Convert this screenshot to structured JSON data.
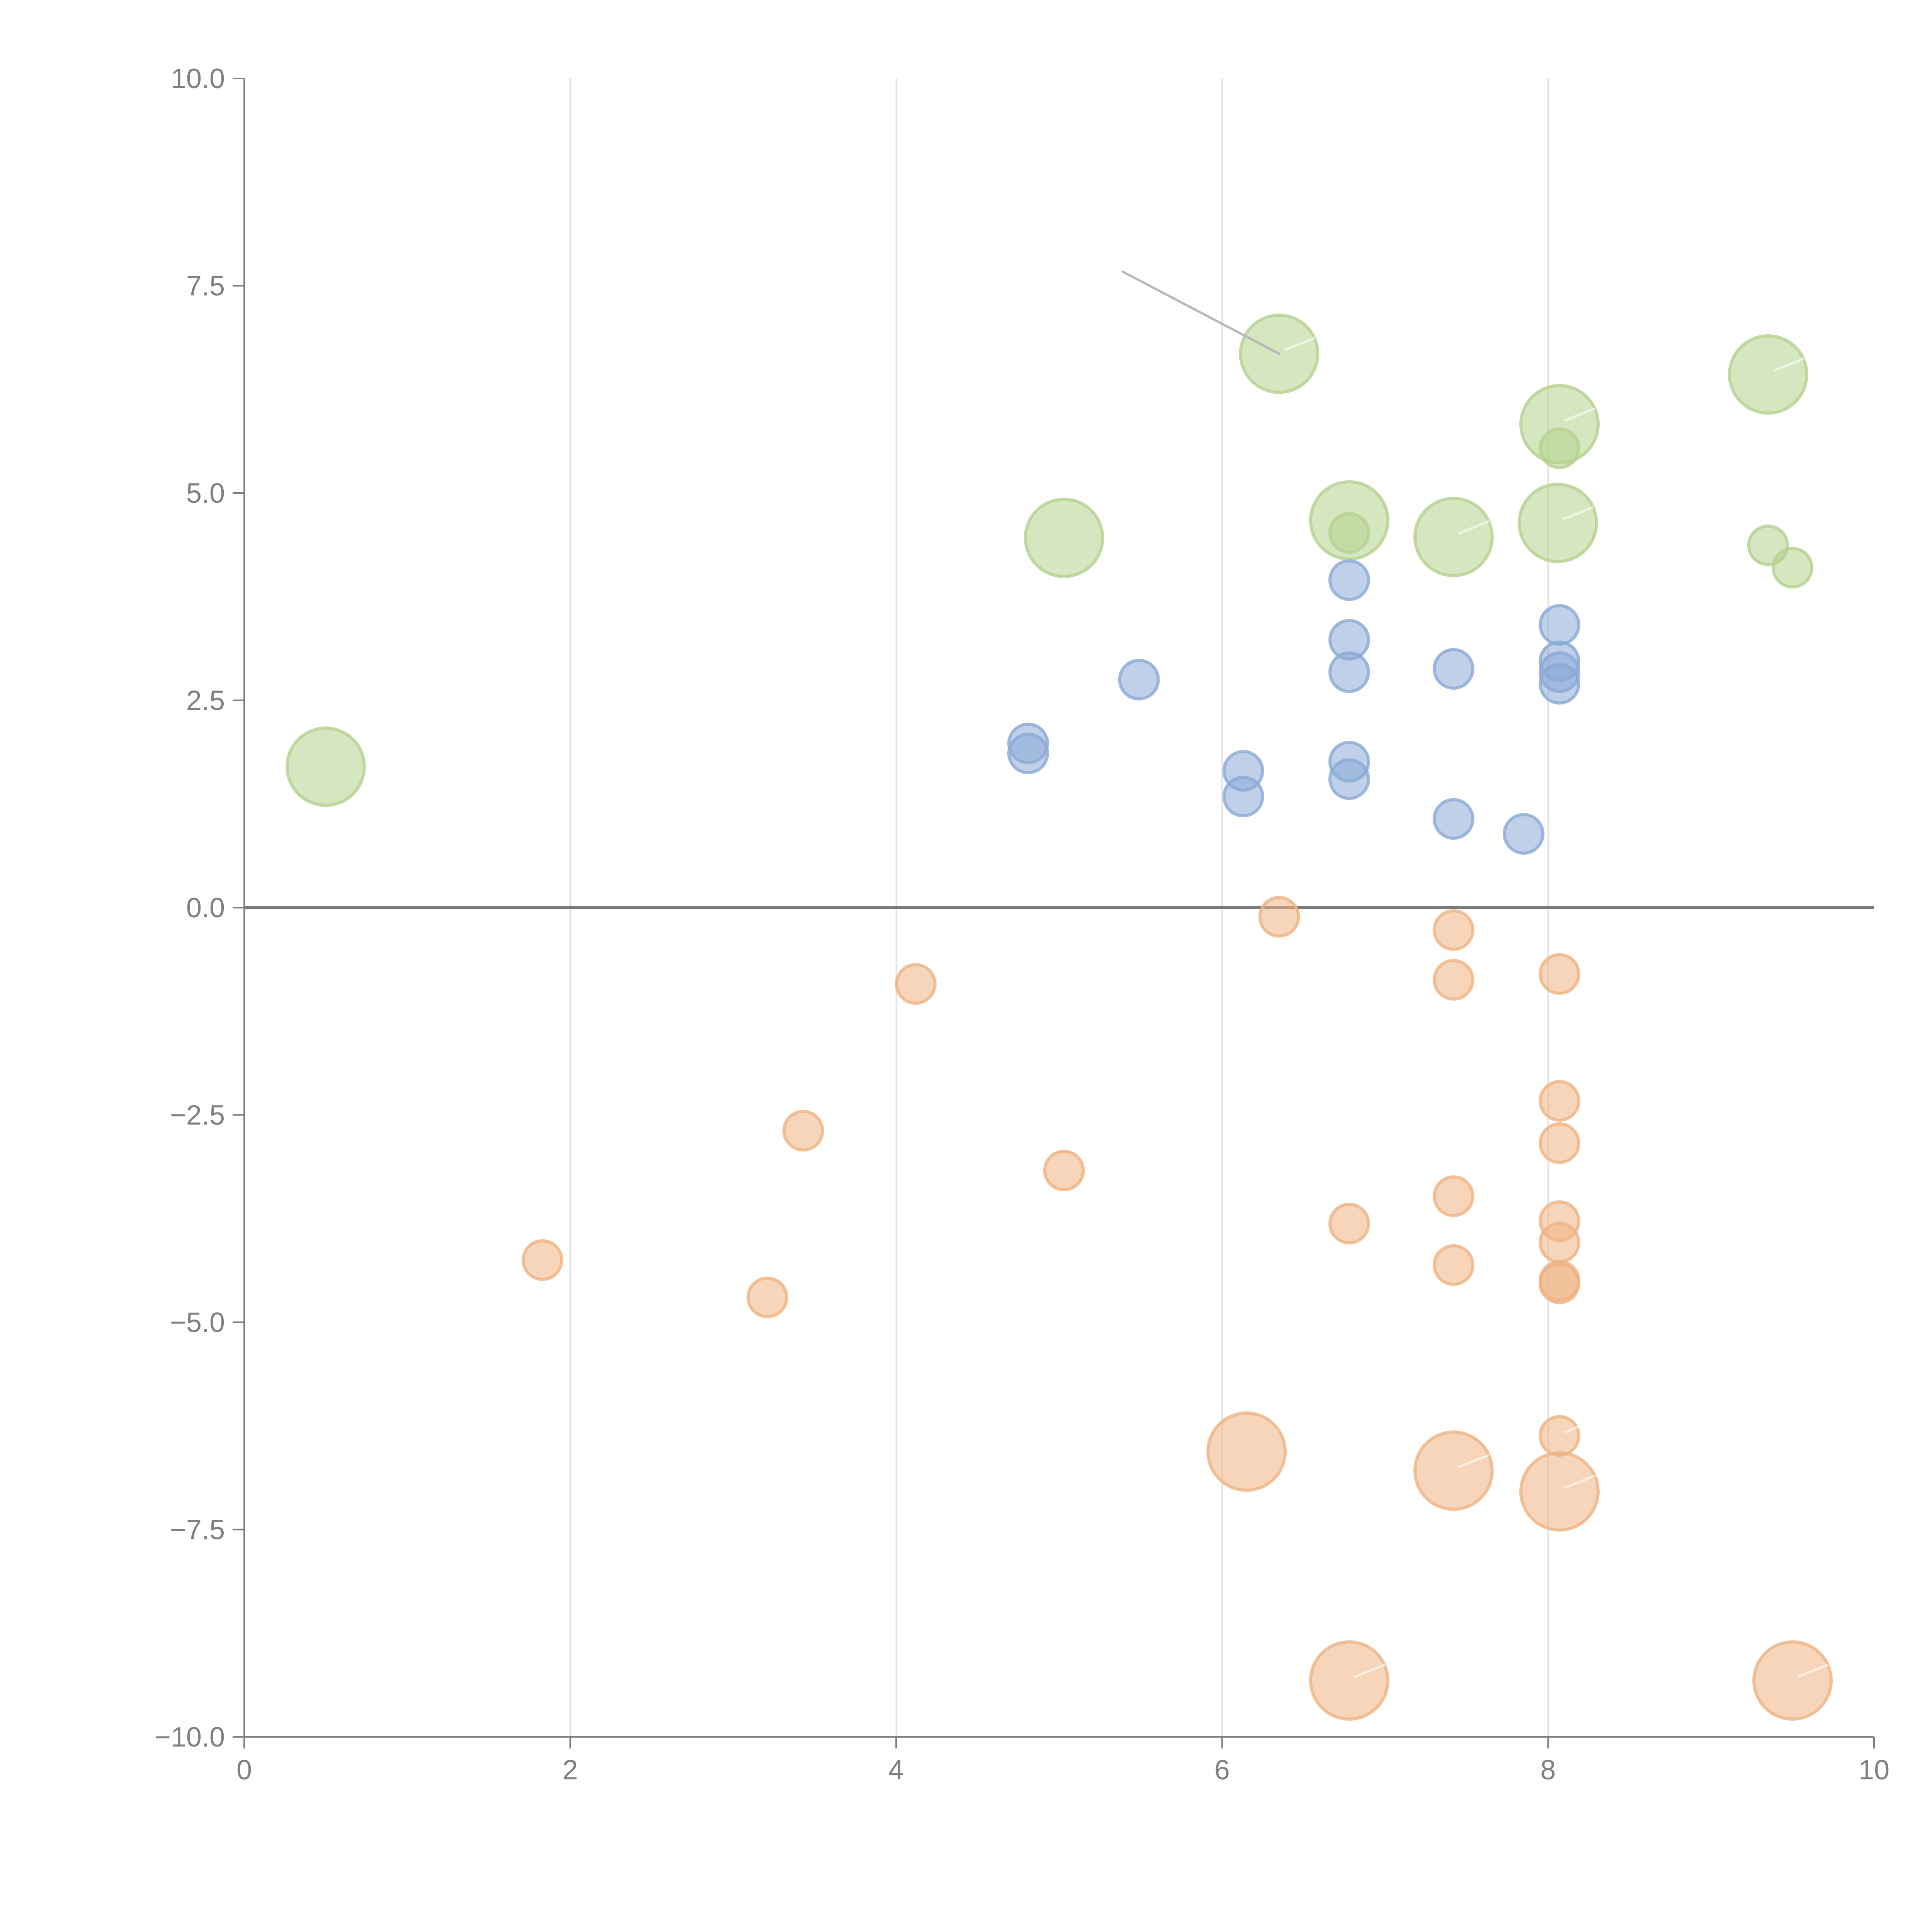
{
  "chart_data": {
    "type": "scatter",
    "title": "",
    "xlabel": "",
    "ylabel": "",
    "xlim": [
      0,
      10
    ],
    "ylim": [
      -10,
      10
    ],
    "x_ticks": [
      "0",
      "2",
      "4",
      "6",
      "8",
      "10"
    ],
    "y_ticks": [
      "10.0",
      "7.5",
      "5.0",
      "2.5",
      "0.0",
      "−2.5",
      "−5.0",
      "−7.5",
      "−10.0"
    ],
    "grid": "vertical",
    "zero_line": true,
    "legend": "none",
    "series": [
      {
        "name": "green",
        "color": "#b5d18d",
        "points": [
          {
            "x": 6.35,
            "y": 6.68,
            "size": "large",
            "leader": true
          },
          {
            "x": 8.07,
            "y": 5.83,
            "size": "large",
            "leader": true
          },
          {
            "x": 9.35,
            "y": 6.43,
            "size": "large",
            "leader": true
          },
          {
            "x": 6.78,
            "y": 4.67,
            "size": "large"
          },
          {
            "x": 7.42,
            "y": 4.47,
            "size": "large",
            "leader": true
          },
          {
            "x": 8.06,
            "y": 4.64,
            "size": "large",
            "leader": true
          },
          {
            "x": 5.03,
            "y": 4.46,
            "size": "large"
          },
          {
            "x": 0.5,
            "y": 1.7,
            "size": "large"
          },
          {
            "x": 8.07,
            "y": 5.54,
            "size": "small"
          },
          {
            "x": 6.78,
            "y": 4.52,
            "size": "small"
          },
          {
            "x": 9.35,
            "y": 4.37,
            "size": "small"
          },
          {
            "x": 9.5,
            "y": 4.1,
            "size": "small"
          }
        ]
      },
      {
        "name": "blue",
        "color": "#8aa9d6",
        "points": [
          {
            "x": 6.78,
            "y": 3.95,
            "size": "small"
          },
          {
            "x": 8.07,
            "y": 3.41,
            "size": "small"
          },
          {
            "x": 6.78,
            "y": 3.23,
            "size": "small"
          },
          {
            "x": 6.78,
            "y": 2.84,
            "size": "small"
          },
          {
            "x": 7.42,
            "y": 2.88,
            "size": "small"
          },
          {
            "x": 8.07,
            "y": 2.97,
            "size": "small"
          },
          {
            "x": 8.07,
            "y": 2.84,
            "size": "small"
          },
          {
            "x": 8.07,
            "y": 2.7,
            "size": "small"
          },
          {
            "x": 5.49,
            "y": 2.75,
            "size": "small"
          },
          {
            "x": 4.81,
            "y": 1.98,
            "size": "small"
          },
          {
            "x": 4.81,
            "y": 1.86,
            "size": "small"
          },
          {
            "x": 6.13,
            "y": 1.65,
            "size": "small"
          },
          {
            "x": 6.13,
            "y": 1.34,
            "size": "small"
          },
          {
            "x": 6.78,
            "y": 1.76,
            "size": "small"
          },
          {
            "x": 6.78,
            "y": 1.55,
            "size": "small"
          },
          {
            "x": 7.42,
            "y": 1.07,
            "size": "small"
          },
          {
            "x": 7.85,
            "y": 0.89,
            "size": "small"
          }
        ]
      },
      {
        "name": "orange",
        "color": "#efb382",
        "points": [
          {
            "x": 6.35,
            "y": -0.11,
            "size": "small"
          },
          {
            "x": 7.42,
            "y": -0.27,
            "size": "small"
          },
          {
            "x": 7.42,
            "y": -0.87,
            "size": "small"
          },
          {
            "x": 8.07,
            "y": -0.8,
            "size": "small"
          },
          {
            "x": 4.12,
            "y": -0.92,
            "size": "small"
          },
          {
            "x": 8.07,
            "y": -2.33,
            "size": "small"
          },
          {
            "x": 3.43,
            "y": -2.69,
            "size": "small"
          },
          {
            "x": 8.07,
            "y": -2.84,
            "size": "small"
          },
          {
            "x": 5.03,
            "y": -3.17,
            "size": "small"
          },
          {
            "x": 7.42,
            "y": -3.48,
            "size": "small"
          },
          {
            "x": 6.78,
            "y": -3.81,
            "size": "small"
          },
          {
            "x": 8.07,
            "y": -3.78,
            "size": "small"
          },
          {
            "x": 8.07,
            "y": -4.04,
            "size": "small"
          },
          {
            "x": 1.83,
            "y": -4.25,
            "size": "small"
          },
          {
            "x": 7.42,
            "y": -4.31,
            "size": "small"
          },
          {
            "x": 8.07,
            "y": -4.5,
            "size": "small"
          },
          {
            "x": 8.07,
            "y": -4.53,
            "size": "small"
          },
          {
            "x": 3.21,
            "y": -4.7,
            "size": "small"
          },
          {
            "x": 8.07,
            "y": -6.37,
            "size": "small",
            "leader": true
          },
          {
            "x": 6.15,
            "y": -6.56,
            "size": "large"
          },
          {
            "x": 7.42,
            "y": -6.79,
            "size": "large",
            "leader": true
          },
          {
            "x": 8.07,
            "y": -7.04,
            "size": "large",
            "leader": true
          },
          {
            "x": 6.78,
            "y": -9.32,
            "size": "large",
            "leader": true
          },
          {
            "x": 9.5,
            "y": -9.32,
            "size": "large",
            "leader": true
          }
        ]
      }
    ],
    "annotation_leader": {
      "from": [
        5.39,
        7.67
      ],
      "to": [
        6.35,
        6.68
      ],
      "color": "#b8b8b8"
    }
  }
}
